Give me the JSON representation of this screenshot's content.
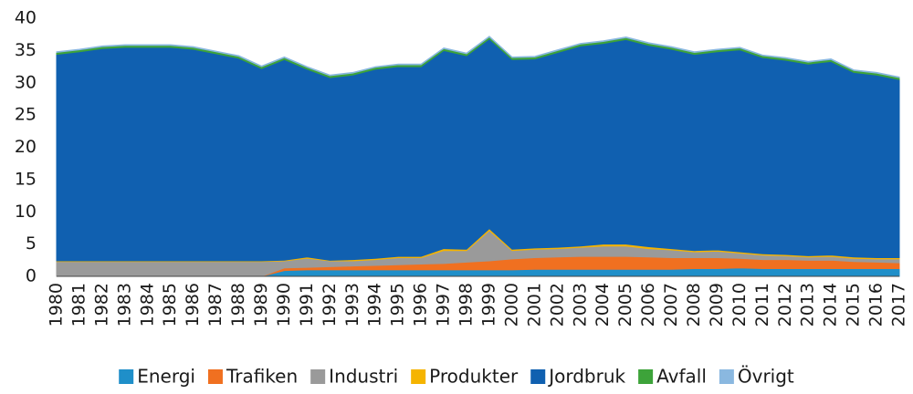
{
  "chart_data": {
    "type": "stacked_area",
    "categories": [
      "1980",
      "1981",
      "1982",
      "1983",
      "1984",
      "1985",
      "1986",
      "1987",
      "1988",
      "1989",
      "1990",
      "1991",
      "1992",
      "1993",
      "1994",
      "1995",
      "1996",
      "1997",
      "1998",
      "1999",
      "2000",
      "2001",
      "2002",
      "2003",
      "2004",
      "2005",
      "2006",
      "2007",
      "2008",
      "2009",
      "2010",
      "2011",
      "2012",
      "2013",
      "2014",
      "2015",
      "2016",
      "2017"
    ],
    "series": [
      {
        "name": "Energi",
        "color": "#1f8fc9",
        "values": [
          0,
          0,
          0,
          0,
          0,
          0,
          0,
          0,
          0,
          0,
          0.9,
          1.0,
          1.0,
          1.0,
          1.0,
          1.0,
          1.0,
          1.0,
          1.0,
          1.0,
          1.0,
          1.1,
          1.1,
          1.1,
          1.1,
          1.1,
          1.1,
          1.1,
          1.2,
          1.2,
          1.3,
          1.2,
          1.2,
          1.2,
          1.2,
          1.2,
          1.2,
          1.2
        ]
      },
      {
        "name": "Trafiken",
        "color": "#f07020",
        "values": [
          0,
          0,
          0,
          0,
          0,
          0,
          0,
          0,
          0,
          0,
          0.4,
          0.4,
          0.5,
          0.6,
          0.7,
          0.8,
          0.9,
          1.0,
          1.2,
          1.4,
          1.7,
          1.8,
          1.9,
          2.0,
          2.0,
          2.0,
          1.9,
          1.8,
          1.7,
          1.7,
          1.5,
          1.4,
          1.4,
          1.3,
          1.3,
          1.1,
          1.0,
          0.9
        ]
      },
      {
        "name": "Industri",
        "color": "#9a9a9a",
        "values": [
          2.3,
          2.3,
          2.3,
          2.3,
          2.3,
          2.3,
          2.3,
          2.3,
          2.3,
          2.3,
          1.1,
          1.4,
          0.9,
          0.8,
          0.9,
          1.1,
          1.0,
          2.0,
          1.8,
          4.7,
          1.3,
          1.3,
          1.3,
          1.4,
          1.6,
          1.6,
          1.3,
          1.2,
          0.9,
          1.0,
          0.8,
          0.7,
          0.6,
          0.5,
          0.6,
          0.5,
          0.5,
          0.6
        ]
      },
      {
        "name": "Produkter",
        "color": "#f5b400",
        "values": [
          0.1,
          0.1,
          0.1,
          0.1,
          0.1,
          0.1,
          0.1,
          0.1,
          0.1,
          0.1,
          0.1,
          0.2,
          0.1,
          0.2,
          0.2,
          0.2,
          0.2,
          0.3,
          0.2,
          0.3,
          0.2,
          0.2,
          0.2,
          0.2,
          0.3,
          0.3,
          0.3,
          0.2,
          0.2,
          0.2,
          0.2,
          0.2,
          0.2,
          0.2,
          0.2,
          0.2,
          0.2,
          0.2
        ]
      },
      {
        "name": "Jordbruk",
        "color": "#1060b0",
        "values": [
          32.0,
          32.4,
          32.9,
          33.1,
          33.1,
          33.1,
          32.8,
          32.1,
          31.4,
          29.8,
          31.1,
          29.1,
          28.3,
          28.6,
          29.3,
          29.4,
          29.4,
          30.7,
          30.0,
          29.4,
          29.4,
          29.3,
          30.2,
          31.0,
          31.1,
          31.7,
          31.2,
          30.9,
          30.4,
          30.7,
          31.3,
          30.4,
          30.1,
          29.7,
          30.0,
          28.6,
          28.3,
          27.6
        ]
      },
      {
        "name": "Avfall",
        "color": "#3da33a",
        "values": [
          0.3,
          0.3,
          0.3,
          0.3,
          0.3,
          0.3,
          0.3,
          0.3,
          0.3,
          0.3,
          0.3,
          0.3,
          0.3,
          0.3,
          0.3,
          0.3,
          0.3,
          0.3,
          0.3,
          0.3,
          0.3,
          0.3,
          0.3,
          0.3,
          0.3,
          0.3,
          0.3,
          0.3,
          0.3,
          0.3,
          0.3,
          0.3,
          0.3,
          0.3,
          0.3,
          0.3,
          0.3,
          0.3
        ]
      },
      {
        "name": "Övrigt",
        "color": "#8ab8e0",
        "values": [
          0.1,
          0.1,
          0.1,
          0.1,
          0.1,
          0.1,
          0.1,
          0.1,
          0.1,
          0.1,
          0.1,
          0.1,
          0.1,
          0.1,
          0.1,
          0.1,
          0.1,
          0.1,
          0.1,
          0.1,
          0.1,
          0.1,
          0.1,
          0.1,
          0.1,
          0.1,
          0.1,
          0.1,
          0.1,
          0.1,
          0.1,
          0.1,
          0.1,
          0.1,
          0.1,
          0.1,
          0.1,
          0.1
        ]
      }
    ],
    "ylim": [
      0,
      40
    ],
    "yticks": [
      0,
      5,
      10,
      15,
      20,
      25,
      30,
      35,
      40
    ],
    "grid": false,
    "legend": "bottom"
  }
}
